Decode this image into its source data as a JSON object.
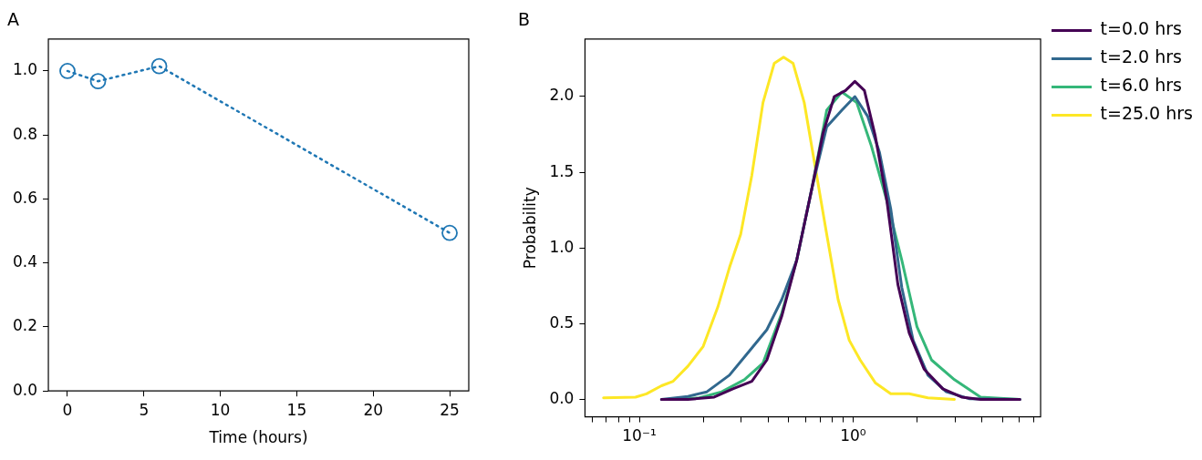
{
  "chart_data": [
    {
      "type": "line",
      "title": "A",
      "xlabel": "Time (hours)",
      "x": [
        0,
        2,
        6,
        25
      ],
      "marker": "circle",
      "line_style": "dotted",
      "grid": false,
      "series": [
        {
          "color": "#1f77b4",
          "values": [
            1.0,
            0.968,
            1.015,
            0.494
          ]
        }
      ],
      "xlim": [
        -1.25,
        26.25
      ],
      "xticks": [
        0,
        5,
        10,
        15,
        20,
        25
      ],
      "ylim": [
        0,
        1.1
      ],
      "yticks": [
        {
          "value": 0,
          "label": "0.0"
        },
        {
          "value": 0.2,
          "label": "0.2"
        },
        {
          "value": 0.4,
          "label": "0.4"
        },
        {
          "value": 0.6,
          "label": "0.6"
        },
        {
          "value": 0.8,
          "label": "0.8"
        },
        {
          "value": 1.0,
          "label": "1.0"
        }
      ]
    },
    {
      "type": "line",
      "title": "B",
      "ylabel": "Probability",
      "log": "x",
      "marker": "none",
      "line_style": "solid",
      "grid": false,
      "legend": "right",
      "series": [
        {
          "name": "t=0.0 hrs",
          "color": "#440154",
          "x": [
            0.127,
            0.169,
            0.224,
            0.274,
            0.336,
            0.395,
            0.464,
            0.545,
            0.641,
            0.724,
            0.817,
            0.922,
            1.02,
            1.13,
            1.27,
            1.44,
            1.62,
            1.83,
            2.15,
            2.63,
            3.22,
            3.95,
            6.03
          ],
          "values": [
            0,
            0,
            0.015,
            0.07,
            0.12,
            0.26,
            0.55,
            0.92,
            1.39,
            1.76,
            2.0,
            2.04,
            2.1,
            2.04,
            1.74,
            1.31,
            0.76,
            0.44,
            0.2,
            0.07,
            0.015,
            0,
            0
          ]
        },
        {
          "name": "t=2.0 hrs",
          "color": "#31688e",
          "x": [
            0.127,
            0.169,
            0.207,
            0.264,
            0.323,
            0.395,
            0.464,
            0.545,
            0.641,
            0.753,
            0.886,
            1.02,
            1.17,
            1.33,
            1.5,
            1.69,
            1.91,
            2.24,
            2.73,
            3.49,
            6.03
          ],
          "values": [
            0,
            0.02,
            0.05,
            0.16,
            0.31,
            0.46,
            0.66,
            0.92,
            1.39,
            1.8,
            1.91,
            2.0,
            1.87,
            1.63,
            1.26,
            0.74,
            0.39,
            0.16,
            0.05,
            0.005,
            0
          ]
        },
        {
          "name": "t=6.0 hrs",
          "color": "#35b779",
          "x": [
            0.144,
            0.191,
            0.243,
            0.31,
            0.379,
            0.464,
            0.545,
            0.641,
            0.753,
            0.886,
            1.04,
            1.22,
            1.44,
            1.69,
            1.99,
            2.33,
            2.98,
            3.95,
            6.03
          ],
          "values": [
            0,
            0.01,
            0.05,
            0.13,
            0.24,
            0.57,
            0.92,
            1.39,
            1.91,
            2.03,
            1.96,
            1.67,
            1.31,
            0.92,
            0.48,
            0.26,
            0.13,
            0.015,
            0
          ]
        },
        {
          "name": "t=25.0 hrs",
          "color": "#fde725",
          "x": [
            0.068,
            0.096,
            0.108,
            0.127,
            0.144,
            0.169,
            0.199,
            0.233,
            0.264,
            0.298,
            0.336,
            0.379,
            0.428,
            0.473,
            0.524,
            0.591,
            0.668,
            0.753,
            0.851,
            0.96,
            1.08,
            1.27,
            1.5,
            1.83,
            2.24,
            2.98
          ],
          "values": [
            0.01,
            0.015,
            0.037,
            0.09,
            0.12,
            0.22,
            0.35,
            0.61,
            0.87,
            1.09,
            1.48,
            1.96,
            2.22,
            2.26,
            2.22,
            1.96,
            1.52,
            1.09,
            0.66,
            0.39,
            0.26,
            0.11,
            0.037,
            0.037,
            0.01,
            0
          ]
        }
      ],
      "xlim": [
        0.0557,
        7.54
      ],
      "xticks": [
        {
          "value": 0.06,
          "label": null
        },
        {
          "value": 0.07,
          "label": null
        },
        {
          "value": 0.08,
          "label": null
        },
        {
          "value": 0.09,
          "label": null
        },
        {
          "value": 0.1,
          "label": "10⁻¹"
        },
        {
          "value": 0.2,
          "label": null
        },
        {
          "value": 0.3,
          "label": null
        },
        {
          "value": 0.4,
          "label": null
        },
        {
          "value": 0.5,
          "label": null
        },
        {
          "value": 0.6,
          "label": null
        },
        {
          "value": 0.7,
          "label": null
        },
        {
          "value": 0.8,
          "label": null
        },
        {
          "value": 0.9,
          "label": null
        },
        {
          "value": 1,
          "label": "10⁰"
        },
        {
          "value": 2,
          "label": null
        },
        {
          "value": 3,
          "label": null
        },
        {
          "value": 4,
          "label": null
        },
        {
          "value": 5,
          "label": null
        },
        {
          "value": 6,
          "label": null
        },
        {
          "value": 7,
          "label": null
        }
      ],
      "ylim": [
        -0.115,
        2.38
      ],
      "yticks": [
        {
          "value": 0,
          "label": "0.0"
        },
        {
          "value": 0.5,
          "label": "0.5"
        },
        {
          "value": 1.0,
          "label": "1.0"
        },
        {
          "value": 1.5,
          "label": "1.5"
        },
        {
          "value": 2.0,
          "label": "2.0"
        }
      ]
    }
  ]
}
